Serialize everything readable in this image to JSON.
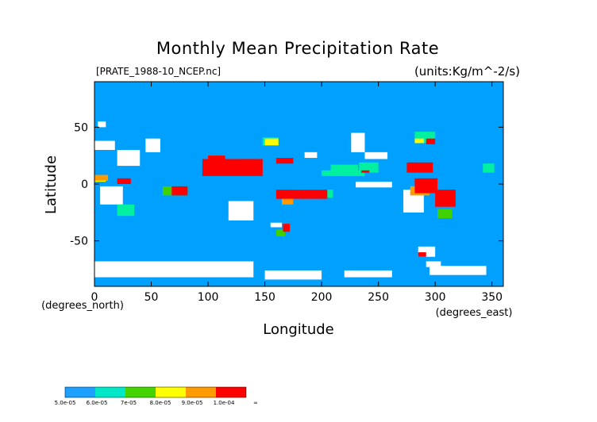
{
  "chart_data": {
    "type": "heatmap",
    "title": "Monthly Mean Precipitation Rate",
    "subtitle": "[PRATE_1988-10_NCEP.nc]",
    "units": "(units:Kg/m^-2/s)",
    "xlabel": "Longitude",
    "ylabel": "Latitude",
    "x_unit_label": "(degrees_east)",
    "y_unit_label": "(degrees_north)",
    "xlim": [
      0,
      360
    ],
    "ylim": [
      -90,
      90
    ],
    "x_ticks": [
      0,
      50,
      100,
      150,
      200,
      250,
      300,
      350
    ],
    "y_ticks": [
      -50,
      0,
      50
    ],
    "grid": false,
    "colorbar": {
      "levels": [
        "5.0e-05",
        "6.0e-05",
        "7e-05",
        "8.0e-05",
        "9.0e-05",
        "1.0e-04",
        "∞"
      ],
      "colors": [
        "#1ea0ff",
        "#00e8c8",
        "#44d400",
        "#ffff00",
        "#ff9a00",
        "#ff0000"
      ]
    },
    "colors": {
      "missing": "#ffffff",
      "low": "#00a0ff",
      "band2": "#00f0a0",
      "band3": "#40d000",
      "band4": "#ffff00",
      "band5": "#ff9a00",
      "high": "#ff0000"
    },
    "regions_missing": [
      {
        "lon": [
          3,
          10
        ],
        "lat": [
          55,
          50
        ]
      },
      {
        "lon": [
          0,
          18
        ],
        "lat": [
          38,
          30
        ]
      },
      {
        "lon": [
          20,
          40
        ],
        "lat": [
          30,
          16
        ]
      },
      {
        "lon": [
          45,
          58
        ],
        "lat": [
          40,
          28
        ]
      },
      {
        "lon": [
          5,
          25
        ],
        "lat": [
          -2,
          -18
        ]
      },
      {
        "lon": [
          118,
          140
        ],
        "lat": [
          -15,
          -32
        ]
      },
      {
        "lon": [
          155,
          165
        ],
        "lat": [
          -34,
          -38
        ]
      },
      {
        "lon": [
          185,
          196
        ],
        "lat": [
          28,
          23
        ]
      },
      {
        "lon": [
          226,
          238
        ],
        "lat": [
          45,
          28
        ]
      },
      {
        "lon": [
          238,
          258
        ],
        "lat": [
          28,
          22
        ]
      },
      {
        "lon": [
          230,
          262
        ],
        "lat": [
          2,
          -3
        ]
      },
      {
        "lon": [
          272,
          290
        ],
        "lat": [
          -5,
          -25
        ]
      },
      {
        "lon": [
          285,
          300
        ],
        "lat": [
          -55,
          -64
        ]
      },
      {
        "lon": [
          292,
          305
        ],
        "lat": [
          -68,
          -73
        ]
      },
      {
        "lon": [
          0,
          140
        ],
        "lat": [
          -68,
          -82
        ]
      },
      {
        "lon": [
          150,
          200
        ],
        "lat": [
          -76,
          -84
        ]
      },
      {
        "lon": [
          220,
          262
        ],
        "lat": [
          -76,
          -82
        ]
      },
      {
        "lon": [
          295,
          345
        ],
        "lat": [
          -72,
          -80
        ]
      }
    ],
    "regions_band2": [
      {
        "lon": [
          148,
          162
        ],
        "lat": [
          41,
          34
        ]
      },
      {
        "lon": [
          208,
          232
        ],
        "lat": [
          17,
          10
        ]
      },
      {
        "lon": [
          233,
          250
        ],
        "lat": [
          19,
          10
        ]
      },
      {
        "lon": [
          178,
          210
        ],
        "lat": [
          -5,
          -12
        ]
      },
      {
        "lon": [
          200,
          238
        ],
        "lat": [
          12,
          7
        ]
      },
      {
        "lon": [
          282,
          300
        ],
        "lat": [
          46,
          36
        ]
      },
      {
        "lon": [
          20,
          35
        ],
        "lat": [
          -18,
          -28
        ]
      },
      {
        "lon": [
          342,
          352
        ],
        "lat": [
          18,
          10
        ]
      }
    ],
    "regions_band3": [
      {
        "lon": [
          60,
          82
        ],
        "lat": [
          -2,
          -10
        ]
      },
      {
        "lon": [
          160,
          168
        ],
        "lat": [
          -40,
          -46
        ]
      },
      {
        "lon": [
          302,
          315
        ],
        "lat": [
          -22,
          -30
        ]
      }
    ],
    "regions_band4": [
      {
        "lon": [
          150,
          162
        ],
        "lat": [
          40,
          34
        ]
      },
      {
        "lon": [
          282,
          290
        ],
        "lat": [
          40,
          36
        ]
      },
      {
        "lon": [
          0,
          10
        ],
        "lat": [
          6,
          2
        ]
      }
    ],
    "regions_band5": [
      {
        "lon": [
          0,
          12
        ],
        "lat": [
          8,
          3
        ]
      },
      {
        "lon": [
          100,
          112
        ],
        "lat": [
          25,
          18
        ]
      },
      {
        "lon": [
          165,
          175
        ],
        "lat": [
          -12,
          -18
        ]
      },
      {
        "lon": [
          278,
          295
        ],
        "lat": [
          -2,
          -10
        ]
      }
    ],
    "regions_high": [
      {
        "lon": [
          20,
          32
        ],
        "lat": [
          5,
          0
        ]
      },
      {
        "lon": [
          68,
          82
        ],
        "lat": [
          -2,
          -10
        ]
      },
      {
        "lon": [
          95,
          148
        ],
        "lat": [
          22,
          7
        ]
      },
      {
        "lon": [
          100,
          115
        ],
        "lat": [
          25,
          18
        ]
      },
      {
        "lon": [
          130,
          148
        ],
        "lat": [
          22,
          10
        ]
      },
      {
        "lon": [
          160,
          175
        ],
        "lat": [
          23,
          18
        ]
      },
      {
        "lon": [
          160,
          205
        ],
        "lat": [
          -5,
          -13
        ]
      },
      {
        "lon": [
          235,
          242
        ],
        "lat": [
          12,
          10
        ]
      },
      {
        "lon": [
          275,
          298
        ],
        "lat": [
          19,
          10
        ]
      },
      {
        "lon": [
          292,
          300
        ],
        "lat": [
          40,
          35
        ]
      },
      {
        "lon": [
          282,
          302
        ],
        "lat": [
          5,
          -8
        ]
      },
      {
        "lon": [
          300,
          318
        ],
        "lat": [
          -5,
          -20
        ]
      },
      {
        "lon": [
          166,
          172
        ],
        "lat": [
          -35,
          -42
        ]
      },
      {
        "lon": [
          285,
          292
        ],
        "lat": [
          -60,
          -64
        ]
      }
    ]
  }
}
